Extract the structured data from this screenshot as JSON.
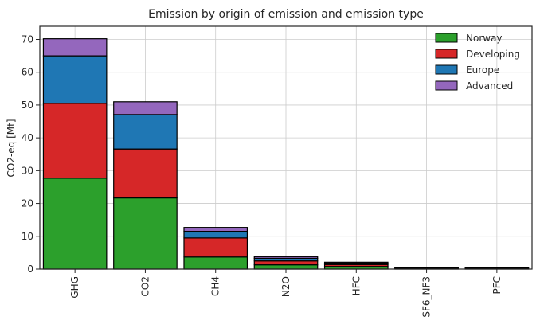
{
  "chart_data": {
    "type": "bar",
    "stacked": true,
    "title": "Emission by origin of emission and emission type",
    "xlabel": "",
    "ylabel": "CO2-eq [Mt]",
    "categories": [
      "GHG",
      "CO2",
      "CH4",
      "N2O",
      "HFC",
      "SF6_NF3",
      "PFC"
    ],
    "ylim": [
      0,
      74
    ],
    "yticks": [
      0,
      10,
      20,
      30,
      40,
      50,
      60,
      70
    ],
    "grid": true,
    "legend_position": "top-right",
    "series": [
      {
        "name": "Norway",
        "color": "#2ca02c",
        "values": [
          27.7,
          21.7,
          3.7,
          1.3,
          0.8,
          0.2,
          0.2
        ]
      },
      {
        "name": "Developing",
        "color": "#d62728",
        "values": [
          22.8,
          14.9,
          5.8,
          1.2,
          0.6,
          0.1,
          0.1
        ]
      },
      {
        "name": "Europe",
        "color": "#1f77b4",
        "values": [
          14.5,
          10.5,
          2.0,
          0.8,
          0.4,
          0.1,
          0.1
        ]
      },
      {
        "name": "Advanced",
        "color": "#9467bd",
        "values": [
          5.2,
          3.9,
          1.2,
          0.5,
          0.3,
          0.1,
          0.0
        ]
      }
    ]
  }
}
